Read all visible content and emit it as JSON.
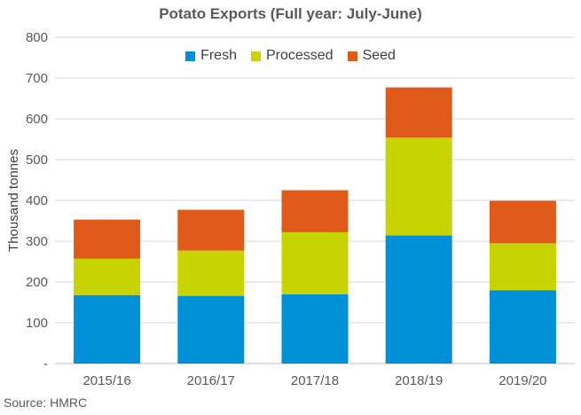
{
  "chart_data": {
    "type": "bar",
    "stacked": true,
    "title": "Potato Exports (Full year: July-June)",
    "ylabel": "Thousand tonnes",
    "xlabel": "",
    "categories": [
      "2015/16",
      "2016/17",
      "2017/18",
      "2018/19",
      "2019/20"
    ],
    "series": [
      {
        "name": "Fresh",
        "color": "#0090d8",
        "values": [
          168,
          166,
          170,
          314,
          180
        ]
      },
      {
        "name": "Processed",
        "color": "#c8d400",
        "values": [
          89,
          111,
          152,
          240,
          115
        ]
      },
      {
        "name": "Seed",
        "color": "#e05a1a",
        "values": [
          96,
          100,
          103,
          123,
          104
        ]
      }
    ],
    "ylim": [
      0,
      800
    ],
    "yticks": [
      "-",
      "100",
      "200",
      "300",
      "400",
      "500",
      "600",
      "700",
      "800"
    ],
    "grid": true,
    "legend": "top-center"
  },
  "source": "Source: HMRC"
}
